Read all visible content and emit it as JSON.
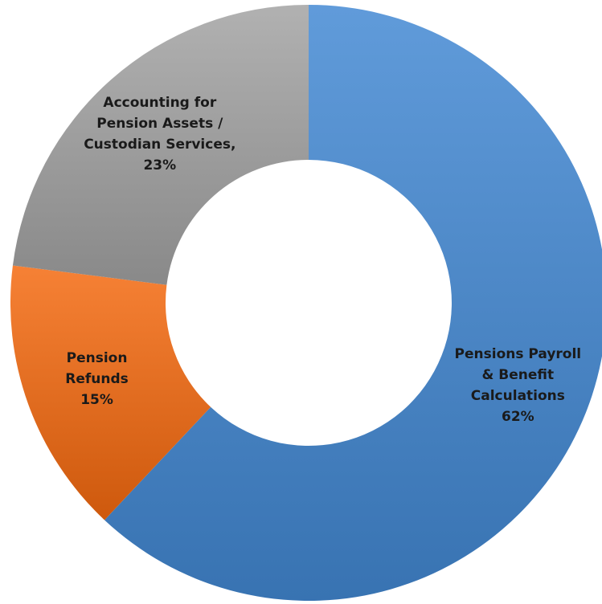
{
  "chart_data": {
    "type": "pie",
    "variant": "donut",
    "title": "",
    "categories": [
      "Pensions Payroll & Benefit Calculations",
      "Pension Refunds",
      "Accounting for Pension Assets / Custodian Services"
    ],
    "values": [
      62,
      15,
      23
    ],
    "value_unit": "%",
    "start_angle_deg": 0,
    "direction": "clockwise",
    "legend": "none",
    "slices": [
      {
        "name": "Pensions Payroll & Benefit Calculations",
        "value": 62,
        "color": "#4a85c4",
        "label_lines": [
          "Pensions Payroll",
          "& Benefit",
          "Calculations",
          "62%"
        ]
      },
      {
        "name": "Pension Refunds",
        "value": 15,
        "color": "#e06b1f",
        "label_lines": [
          "Pension",
          "Refunds",
          "15%"
        ]
      },
      {
        "name": "Accounting for Pension Assets / Custodian Services",
        "value": 23,
        "color": "#9b9b9b",
        "label_lines": [
          "Accounting for",
          "Pension Assets /",
          "Custodian Services,",
          "23%"
        ]
      }
    ]
  }
}
